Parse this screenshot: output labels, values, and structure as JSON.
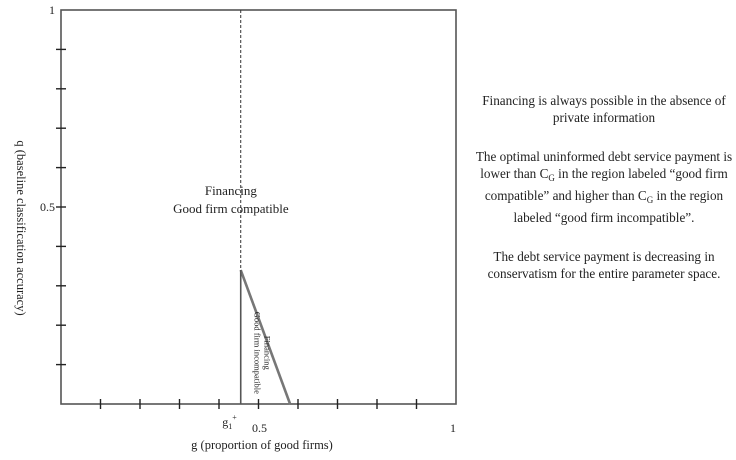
{
  "chart_data": {
    "type": "line",
    "title": "",
    "xlabel": "g (proportion of good firms)",
    "ylabel": "q (baseline classification accuracy)",
    "xlim": [
      0,
      1
    ],
    "ylim": [
      0,
      1
    ],
    "x_tick_labels": [
      {
        "value": 0.5,
        "label": "0.5"
      },
      {
        "value": 1,
        "label": "1"
      }
    ],
    "y_tick_labels": [
      {
        "value": 0.5,
        "label": "0.5"
      },
      {
        "value": 1,
        "label": "1"
      }
    ],
    "minor_ticks": 0.1,
    "grid": false,
    "g1_plus": {
      "x": 0.455,
      "label_main": "g",
      "label_sub": "1",
      "label_sup": "+"
    },
    "dashed_line": {
      "x": 0.455,
      "y_from": 0.34,
      "y_to": 1
    },
    "series": [
      {
        "x": [
          0.455,
          0.58
        ],
        "y": [
          0.34,
          0.0
        ]
      },
      {
        "x": [
          0.455,
          0.455
        ],
        "y": [
          0.34,
          0.0
        ]
      }
    ],
    "region_labels": {
      "compatible": {
        "x": 0.43,
        "y": 0.53,
        "line1": "Financing",
        "line2": "Good firm compatible"
      },
      "incompatible": {
        "x": 0.505,
        "y": 0.13,
        "line1": "Financing",
        "line2": "Good firm incompatible"
      }
    }
  },
  "notes": {
    "p1": "Financing is always possible in the absence of private information",
    "p2_a": "The optimal uninformed debt service payment is lower than ",
    "p2_c1": "C",
    "p2_sub1": "G",
    "p2_b": "  in the region labeled “good firm compatible” and higher than ",
    "p2_c2": "C",
    "p2_sub2": "G",
    "p2_d": " in the region labeled “good firm incompatible”.",
    "p3": "The debt service payment is decreasing in conservatism for the entire parameter space."
  }
}
